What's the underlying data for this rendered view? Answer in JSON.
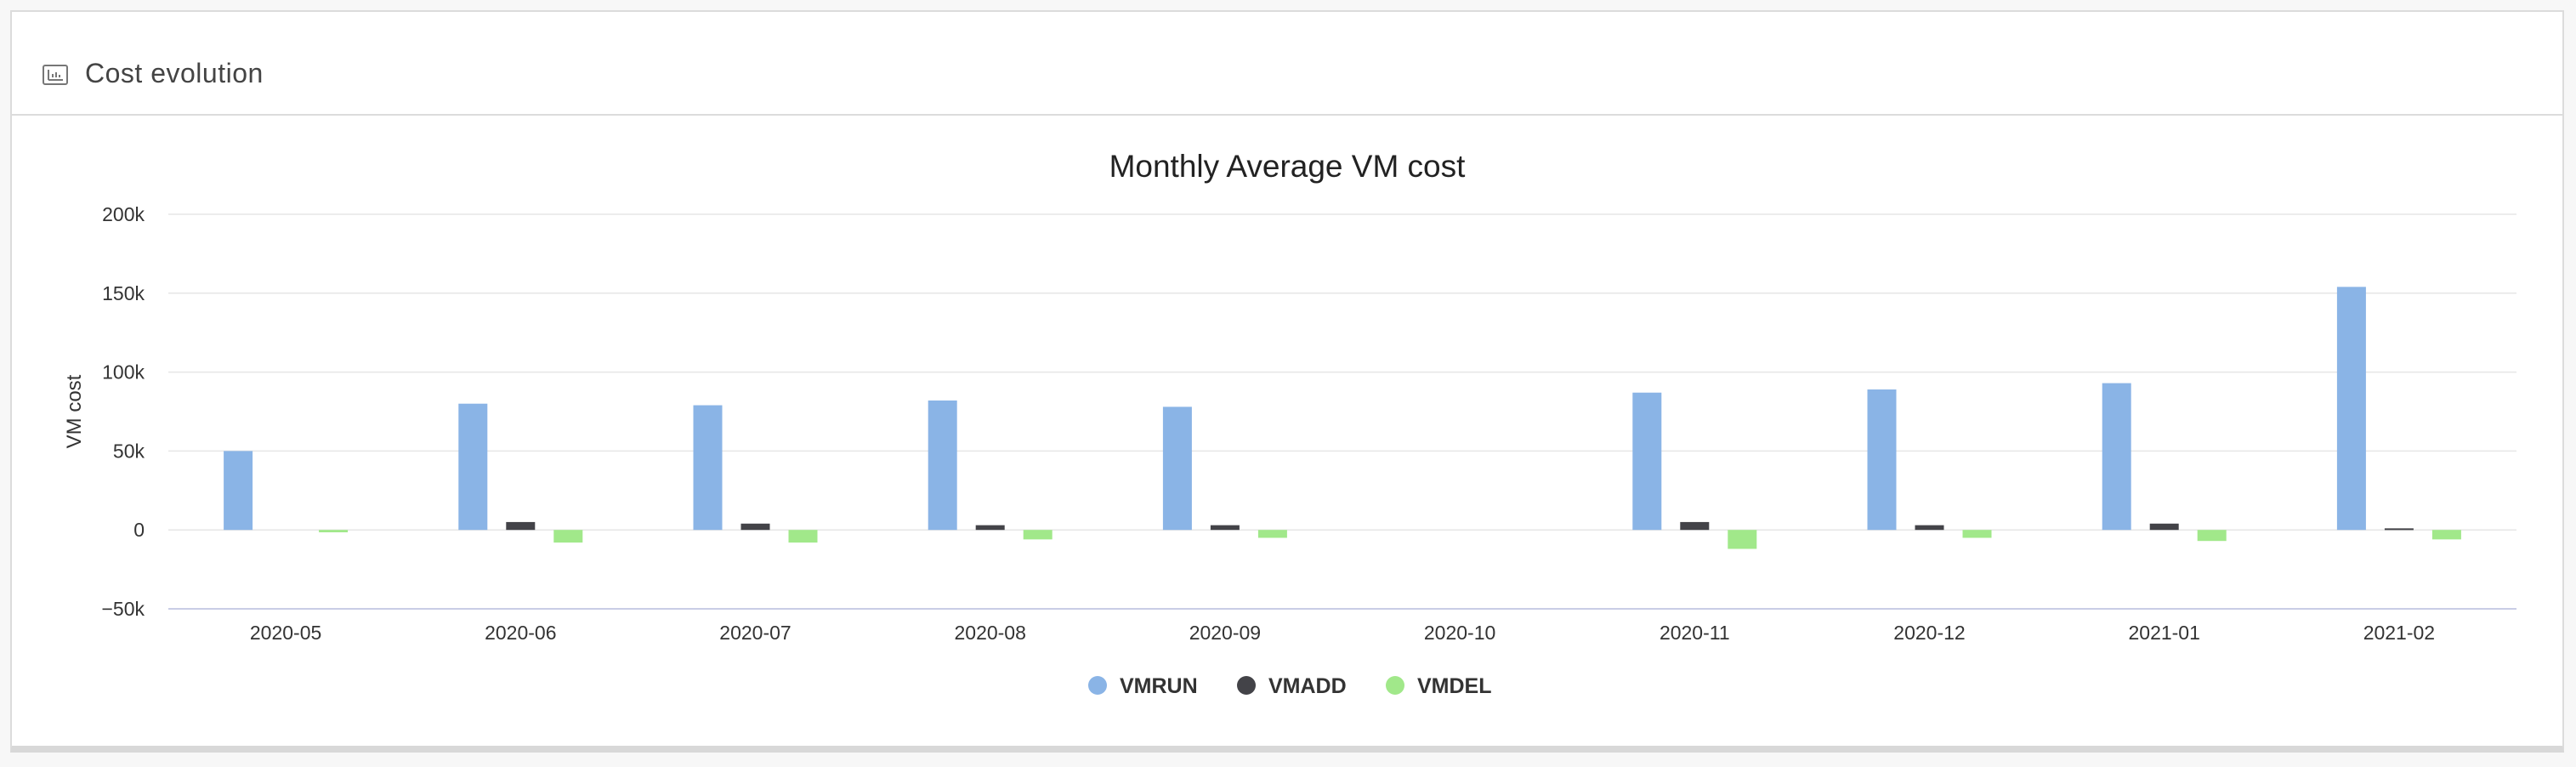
{
  "header": {
    "title": "Cost evolution",
    "icon": "chart-icon"
  },
  "chart_data": {
    "type": "bar",
    "title": "Monthly Average VM cost",
    "xlabel": "",
    "ylabel": "VM cost",
    "ylim": [
      -50000,
      200000
    ],
    "yticks": [
      {
        "value": 200000,
        "label": "200k"
      },
      {
        "value": 150000,
        "label": "150k"
      },
      {
        "value": 100000,
        "label": "100k"
      },
      {
        "value": 50000,
        "label": "50k"
      },
      {
        "value": 0,
        "label": "0"
      },
      {
        "value": -50000,
        "label": "−50k"
      }
    ],
    "categories": [
      "2020-05",
      "2020-06",
      "2020-07",
      "2020-08",
      "2020-09",
      "2020-10",
      "2020-11",
      "2020-12",
      "2021-01",
      "2021-02"
    ],
    "series": [
      {
        "name": "VMRUN",
        "color": "#8ab4e6",
        "values": [
          50000,
          80000,
          79000,
          82000,
          78000,
          0,
          87000,
          89000,
          93000,
          154000
        ]
      },
      {
        "name": "VMADD",
        "color": "#434348",
        "values": [
          0,
          5000,
          4000,
          3000,
          3000,
          0,
          5000,
          3000,
          4000,
          1000
        ]
      },
      {
        "name": "VMDEL",
        "color": "#a1e88a",
        "values": [
          -1500,
          -8000,
          -8000,
          -6000,
          -5000,
          0,
          -12000,
          -5000,
          -7000,
          -6000
        ]
      }
    ],
    "grid": true,
    "legend": "bottom-center"
  }
}
